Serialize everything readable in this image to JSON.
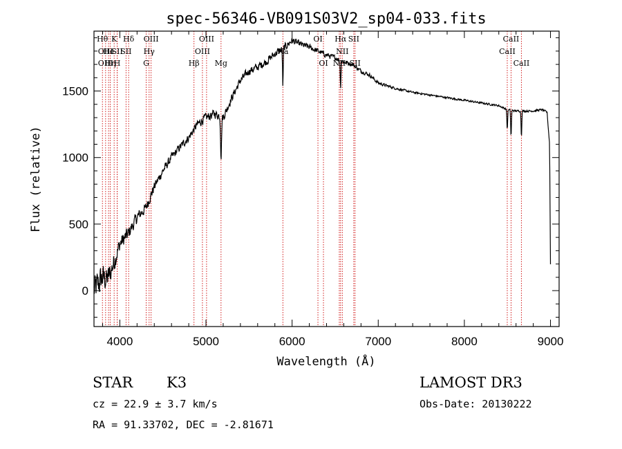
{
  "chart_data": {
    "type": "line",
    "title": "spec-56346-VB091S03V2_sp04-033.fits",
    "xlabel": "Wavelength (Å)",
    "ylabel": "Flux (relative)",
    "xlim": [
      3700,
      9100
    ],
    "ylim": [
      -270,
      1950
    ],
    "x_ticks": [
      4000,
      5000,
      6000,
      7000,
      8000,
      9000
    ],
    "y_ticks": [
      0,
      500,
      1000,
      1500
    ],
    "spectrum_anchors": {
      "x": [
        3700,
        3750,
        3800,
        3850,
        3900,
        4000,
        4100,
        4200,
        4300,
        4400,
        4500,
        4600,
        4700,
        4800,
        4900,
        5000,
        5100,
        5200,
        5300,
        5400,
        5500,
        5600,
        5700,
        5800,
        5900,
        6000,
        6100,
        6200,
        6300,
        6400,
        6500,
        6600,
        6700,
        6800,
        6900,
        7000,
        7200,
        7400,
        7600,
        7800,
        8000,
        8200,
        8400,
        8500,
        8600,
        8700,
        8800,
        8900,
        8960,
        8990,
        9000
      ],
      "y": [
        0,
        50,
        100,
        80,
        150,
        350,
        430,
        550,
        620,
        780,
        900,
        1000,
        1080,
        1150,
        1250,
        1300,
        1330,
        1300,
        1450,
        1580,
        1650,
        1680,
        1720,
        1780,
        1820,
        1880,
        1850,
        1830,
        1800,
        1770,
        1750,
        1720,
        1700,
        1650,
        1620,
        1560,
        1520,
        1490,
        1470,
        1450,
        1430,
        1410,
        1390,
        1360,
        1350,
        1350,
        1350,
        1360,
        1340,
        1100,
        200
      ],
      "noise_amplitude": [
        150,
        150,
        140,
        120,
        110,
        80,
        70,
        60,
        55,
        50,
        45,
        45,
        40,
        40,
        40,
        45,
        45,
        45,
        40,
        40,
        40,
        40,
        40,
        40,
        40,
        35,
        30,
        30,
        28,
        28,
        25,
        25,
        22,
        20,
        18,
        15,
        12,
        10,
        10,
        10,
        10,
        10,
        10,
        10,
        10,
        10,
        10,
        10,
        10,
        10,
        10
      ]
    },
    "absorption_dips": [
      {
        "x": 5175,
        "depth": 300,
        "width": 8
      },
      {
        "x": 5893,
        "depth": 280,
        "width": 6
      },
      {
        "x": 6563,
        "depth": 200,
        "width": 6
      },
      {
        "x": 8498,
        "depth": 150,
        "width": 6
      },
      {
        "x": 8542,
        "depth": 200,
        "width": 6
      },
      {
        "x": 8662,
        "depth": 190,
        "width": 6
      }
    ],
    "line_marks": [
      {
        "x": 3798,
        "label": "Hθ",
        "row": 0
      },
      {
        "x": 3835,
        "label": "OIII",
        "row": 1
      },
      {
        "x": 3835,
        "label": "OIII",
        "row": 2
      },
      {
        "x": 3869,
        "label": "He",
        "row": 1
      },
      {
        "x": 3889,
        "label": "Hη",
        "row": 2
      },
      {
        "x": 3934,
        "label": "K",
        "row": 0
      },
      {
        "x": 3969,
        "label": "H",
        "row": 2
      },
      {
        "x": 3970,
        "label": "SII",
        "row": 1
      },
      {
        "x": 4102,
        "label": "Hδ",
        "row": 0
      },
      {
        "x": 4072,
        "label": "SII",
        "row": 1
      },
      {
        "x": 4306,
        "label": "G",
        "row": 2
      },
      {
        "x": 4340,
        "label": "Hγ",
        "row": 1
      },
      {
        "x": 4363,
        "label": "OIII",
        "row": 0
      },
      {
        "x": 4861,
        "label": "Hβ",
        "row": 2
      },
      {
        "x": 4959,
        "label": "OIII",
        "row": 1
      },
      {
        "x": 5007,
        "label": "OIII",
        "row": 0
      },
      {
        "x": 5175,
        "label": "Mg",
        "row": 2
      },
      {
        "x": 5893,
        "label": "Na",
        "row": 1
      },
      {
        "x": 6300,
        "label": "OI",
        "row": 0
      },
      {
        "x": 6364,
        "label": "OI",
        "row": 2
      },
      {
        "x": 6548,
        "label": "NII",
        "row": 2
      },
      {
        "x": 6563,
        "label": "Hα",
        "row": 0
      },
      {
        "x": 6583,
        "label": "NII",
        "row": 1
      },
      {
        "x": 6716,
        "label": "SII",
        "row": 0
      },
      {
        "x": 6731,
        "label": "SII",
        "row": 2
      },
      {
        "x": 8498,
        "label": "CaII",
        "row": 1
      },
      {
        "x": 8542,
        "label": "CaII",
        "row": 0
      },
      {
        "x": 8662,
        "label": "CaII",
        "row": 2
      }
    ]
  },
  "info": {
    "object_class": "STAR",
    "subclass": "K3",
    "survey": "LAMOST DR3",
    "redshift": "cz = 22.9 ± 3.7 km/s",
    "obs_date": "Obs-Date: 20130222",
    "coords": "RA =  91.33702, DEC =  -2.81671"
  },
  "colors": {
    "spectrum": "#000000",
    "line_marker": "#cc0000",
    "axes": "#000000",
    "background": "#ffffff"
  }
}
